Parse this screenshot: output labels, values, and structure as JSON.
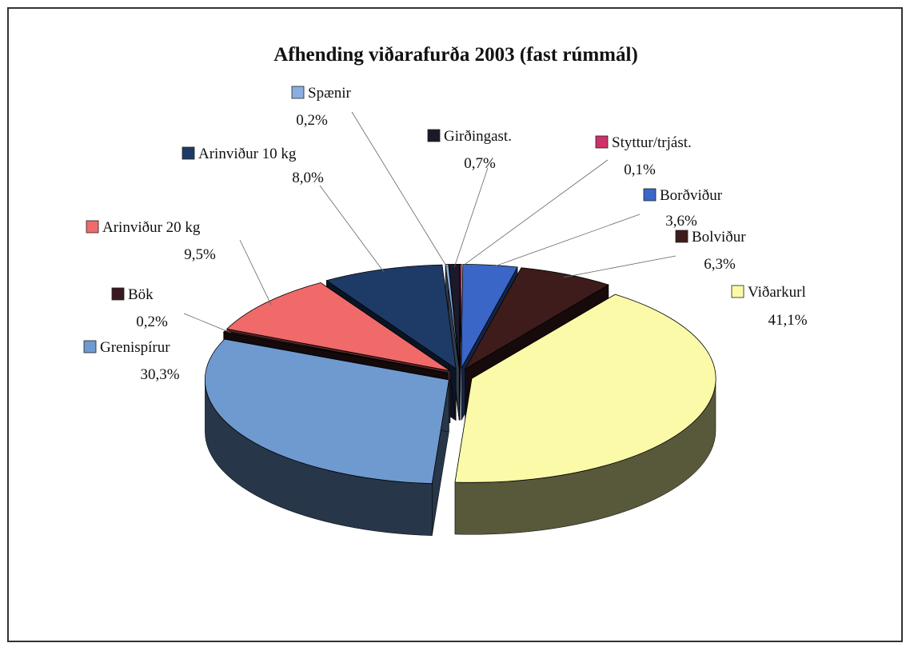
{
  "chart_data": {
    "type": "pie",
    "title": "Afhending viðarafurða 2003 (fast rúmmál)",
    "categories": [
      "Styttur/trjást.",
      "Borðviður",
      "Bolviður",
      "Viðarkurl",
      "Grenispírur",
      "Bök",
      "Arinviður 20 kg",
      "Arinviður 10 kg",
      "Spænir",
      "Girðingast."
    ],
    "values": [
      0.1,
      3.6,
      6.3,
      41.1,
      30.3,
      0.2,
      9.5,
      8.0,
      0.2,
      0.7
    ],
    "value_labels": [
      "0,1%",
      "3,6%",
      "6,3%",
      "41,1%",
      "30,3%",
      "0,2%",
      "9,5%",
      "8,0%",
      "0,2%",
      "0,7%"
    ],
    "colors": [
      "#d0306a",
      "#3a66c8",
      "#3e1c1c",
      "#fafaa8",
      "#6f9ad0",
      "#3a1a20",
      "#f06a6a",
      "#1e3a66",
      "#8aaee0",
      "#1a1a2a"
    ]
  }
}
